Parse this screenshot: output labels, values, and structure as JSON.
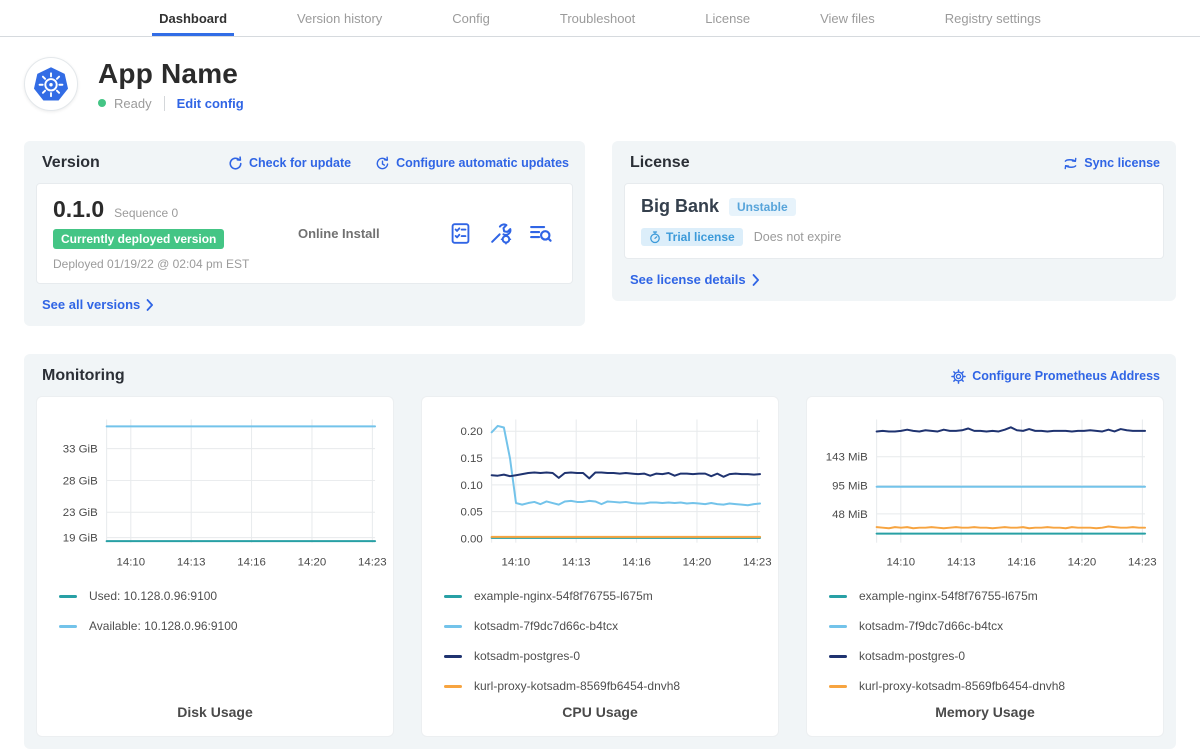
{
  "colors": {
    "accent_blue": "#3065e5",
    "tab_underline": "#326de6",
    "badge_green": "#44c585",
    "teal": "#28a0a5",
    "light_blue": "#73c3ea",
    "navy": "#1f3370",
    "orange": "#f7a440"
  },
  "tabs": {
    "items": [
      {
        "label": "Dashboard",
        "active": true
      },
      {
        "label": "Version history",
        "active": false
      },
      {
        "label": "Config",
        "active": false
      },
      {
        "label": "Troubleshoot",
        "active": false
      },
      {
        "label": "License",
        "active": false
      },
      {
        "label": "View files",
        "active": false
      },
      {
        "label": "Registry settings",
        "active": false
      }
    ]
  },
  "app": {
    "title": "App Name",
    "status": "Ready",
    "edit_config_label": "Edit config"
  },
  "version": {
    "title": "Version",
    "check_update_label": "Check for update",
    "auto_update_label": "Configure automatic updates",
    "number": "0.1.0",
    "sequence": "Sequence 0",
    "deployed_badge": "Currently deployed version",
    "install_type": "Online Install",
    "deployed_at": "Deployed 01/19/22 @ 02:04 pm EST",
    "see_all_label": "See all versions"
  },
  "license": {
    "title": "License",
    "sync_label": "Sync license",
    "customer": "Big Bank",
    "channel_badge": "Unstable",
    "trial_badge": "Trial license",
    "expiry": "Does not expire",
    "see_details_label": "See license details"
  },
  "monitoring": {
    "title": "Monitoring",
    "configure_label": "Configure Prometheus Address"
  },
  "chart_data": [
    {
      "type": "line",
      "title": "Disk Usage",
      "x_ticks": [
        "14:10",
        "14:13",
        "14:16",
        "14:20",
        "14:23"
      ],
      "y_ticks": [
        {
          "label": "33 GiB",
          "value": 33
        },
        {
          "label": "28 GiB",
          "value": 28
        },
        {
          "label": "23 GiB",
          "value": 23
        },
        {
          "label": "19 GiB",
          "value": 19
        }
      ],
      "y_domain": [
        18.2,
        37.6
      ],
      "grid": true,
      "legend_position": "below",
      "series": [
        {
          "name": "Used: 10.128.0.96:9100",
          "color": "teal",
          "values": [
            18.45,
            18.45
          ]
        },
        {
          "name": "Available: 10.128.0.96:9100",
          "color": "light_blue",
          "values": [
            36.5,
            36.5
          ]
        }
      ]
    },
    {
      "type": "line",
      "title": "CPU Usage",
      "x_ticks": [
        "14:10",
        "14:13",
        "14:16",
        "14:20",
        "14:23"
      ],
      "y_ticks": [
        {
          "label": "0.20",
          "value": 0.2
        },
        {
          "label": "0.15",
          "value": 0.15
        },
        {
          "label": "0.10",
          "value": 0.1
        },
        {
          "label": "0.05",
          "value": 0.05
        },
        {
          "label": "0.00",
          "value": 0.0
        }
      ],
      "y_domain": [
        -0.008,
        0.222
      ],
      "grid": true,
      "legend_position": "below",
      "series": [
        {
          "name": "example-nginx-54f8f76755-l675m",
          "color": "teal",
          "values": [
            0.001,
            0.001
          ]
        },
        {
          "name": "kotsadm-7f9dc7d66c-b4tcx",
          "color": "light_blue",
          "values": [
            0.198,
            0.21,
            0.207,
            0.15,
            0.066,
            0.063,
            0.066,
            0.068,
            0.064,
            0.069,
            0.066,
            0.063,
            0.069,
            0.07,
            0.068,
            0.068,
            0.07,
            0.069,
            0.064,
            0.069,
            0.068,
            0.067,
            0.068,
            0.066,
            0.065,
            0.065,
            0.067,
            0.067,
            0.066,
            0.067,
            0.066,
            0.067,
            0.065,
            0.066,
            0.065,
            0.064,
            0.066,
            0.064,
            0.063,
            0.065,
            0.064,
            0.063,
            0.062,
            0.064,
            0.065
          ]
        },
        {
          "name": "kotsadm-postgres-0",
          "color": "navy",
          "values": [
            0.118,
            0.117,
            0.119,
            0.116,
            0.118,
            0.12,
            0.122,
            0.123,
            0.122,
            0.123,
            0.122,
            0.113,
            0.122,
            0.123,
            0.122,
            0.122,
            0.112,
            0.123,
            0.123,
            0.122,
            0.122,
            0.121,
            0.122,
            0.121,
            0.12,
            0.121,
            0.117,
            0.121,
            0.12,
            0.122,
            0.117,
            0.121,
            0.121,
            0.12,
            0.121,
            0.121,
            0.116,
            0.121,
            0.115,
            0.12,
            0.121,
            0.12,
            0.12,
            0.119,
            0.12
          ]
        },
        {
          "name": "kurl-proxy-kotsadm-8569fb6454-dnvh8",
          "color": "orange",
          "values": [
            0.003,
            0.003
          ]
        }
      ]
    },
    {
      "type": "line",
      "title": "Memory Usage",
      "x_ticks": [
        "14:10",
        "14:13",
        "14:16",
        "14:20",
        "14:23"
      ],
      "y_ticks": [
        {
          "label": "143 MiB",
          "value": 143
        },
        {
          "label": "95 MiB",
          "value": 95
        },
        {
          "label": "48 MiB",
          "value": 48
        }
      ],
      "y_domain": [
        0,
        205
      ],
      "grid": true,
      "legend_position": "below",
      "series": [
        {
          "name": "example-nginx-54f8f76755-l675m",
          "color": "teal",
          "values": [
            15,
            15
          ]
        },
        {
          "name": "kotsadm-7f9dc7d66c-b4tcx",
          "color": "light_blue",
          "values": [
            93,
            93
          ]
        },
        {
          "name": "kotsadm-postgres-0",
          "color": "navy",
          "values": [
            185,
            186,
            185,
            185,
            186,
            188,
            186,
            185,
            187,
            186,
            185,
            188,
            186,
            186,
            187,
            190,
            186,
            186,
            185,
            186,
            185,
            188,
            192,
            187,
            186,
            189,
            186,
            186,
            185,
            186,
            186,
            186,
            185,
            186,
            186,
            187,
            186,
            185,
            188,
            185,
            189,
            187,
            186,
            186,
            186
          ]
        },
        {
          "name": "kurl-proxy-kotsadm-8569fb6454-dnvh8",
          "color": "orange",
          "values": [
            26,
            25,
            24,
            26,
            25,
            26,
            24,
            25,
            25,
            26,
            25,
            24,
            25,
            26,
            25,
            25,
            26,
            25,
            25,
            24,
            25,
            26,
            25,
            25,
            26,
            24,
            25,
            25,
            26,
            25,
            25,
            24,
            26,
            25,
            25,
            25,
            24,
            25,
            27,
            26,
            25,
            25,
            26,
            25,
            25
          ]
        }
      ]
    }
  ]
}
